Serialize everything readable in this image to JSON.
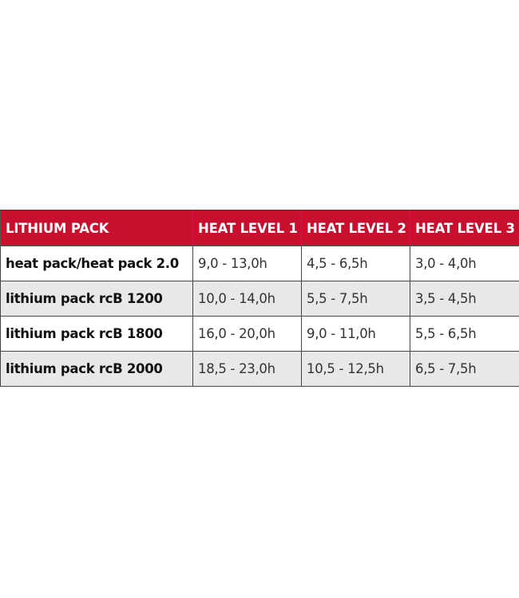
{
  "table": {
    "headers": [
      "LITHIUM PACK",
      "HEAT LEVEL 1",
      "HEAT LEVEL 2",
      "HEAT LEVEL 3"
    ],
    "rows": [
      [
        "heat pack/heat pack 2.0",
        "9,0 - 13,0h",
        "4,5 - 6,5h",
        "3,0 - 4,0h"
      ],
      [
        "lithium pack rcB 1200",
        "10,0 - 14,0h",
        "5,5 - 7,5h",
        "3,5 - 4,5h"
      ],
      [
        "lithium pack rcB 1800",
        "16,0 - 20,0h",
        "9,0 - 11,0h",
        "5,5 - 6,5h"
      ],
      [
        "lithium pack rcB 2000",
        "18,5 - 23,0h",
        "10,5 - 12,5h",
        "6,5 - 7,5h"
      ]
    ]
  },
  "colors": {
    "header_bg": "#c8102e",
    "alt_row_bg": "#e8e8e8"
  }
}
